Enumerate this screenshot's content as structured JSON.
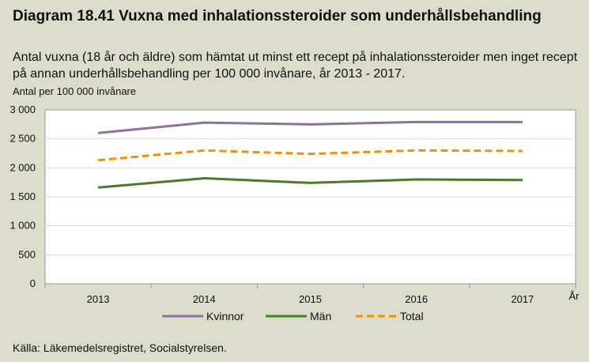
{
  "title": "Diagram 18.41 Vuxna med inhalationssteroider som underhållsbehandling",
  "subtitle": "Antal vuxna (18 år och äldre) som hämtat ut minst ett recept på inhalationssteroider men inget recept på annan underhållsbehandling per 100 000 invånare, år 2013 - 2017.",
  "source": "Källa: Läkemedelsregistret, Socialstyrelsen.",
  "chart_data": {
    "type": "line",
    "ylabel": "Antal per 100 000 invånare",
    "xlabel": "År",
    "categories": [
      "2013",
      "2014",
      "2015",
      "2016",
      "2017"
    ],
    "ylim": [
      0,
      3000
    ],
    "yticks": [
      0,
      500,
      1000,
      1500,
      2000,
      2500,
      3000
    ],
    "ytick_labels": [
      "0",
      "500",
      "1 000",
      "1 500",
      "2 000",
      "2 500",
      "3 000"
    ],
    "grid": true,
    "legend_position": "bottom",
    "series": [
      {
        "name": "Kvinnor",
        "values": [
          2600,
          2780,
          2750,
          2790,
          2790
        ],
        "color": "#8e6f9e",
        "style": "solid"
      },
      {
        "name": "Män",
        "values": [
          1660,
          1820,
          1740,
          1800,
          1790
        ],
        "color": "#4a7a2a",
        "style": "solid"
      },
      {
        "name": "Total",
        "values": [
          2130,
          2300,
          2240,
          2300,
          2290
        ],
        "color": "#f0900a",
        "style": "dashed"
      }
    ]
  }
}
